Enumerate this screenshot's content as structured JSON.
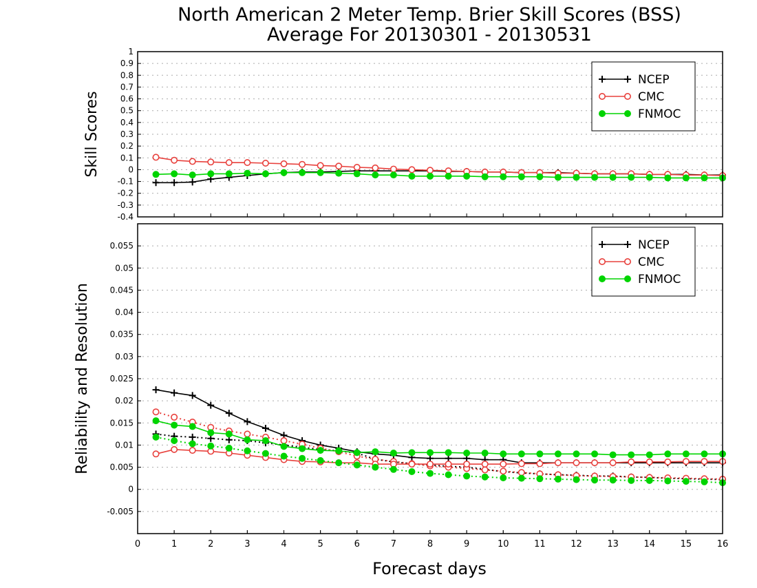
{
  "title_line1": "North American 2 Meter Temp. Brier Skill Scores (BSS)",
  "title_line2": "Average For 20130301 - 20130531",
  "xlabel": "Forecast days",
  "x_ticks": [
    "0",
    "1",
    "2",
    "3",
    "4",
    "5",
    "6",
    "7",
    "8",
    "9",
    "10",
    "11",
    "12",
    "13",
    "14",
    "15",
    "16"
  ],
  "colors": {
    "NCEP": "#000000",
    "CMC": "#e8403c",
    "FNMOC": "#00d400",
    "grid": "#aaaaaa"
  },
  "chart_data": [
    {
      "type": "line",
      "panel": "top",
      "ylabel": "Skill Scores",
      "ylim": [
        -0.4,
        1
      ],
      "y_ticks": [
        "1",
        "0.9",
        "0.8",
        "0.7",
        "0.6",
        "0.5",
        "0.4",
        "0.3",
        "0.2",
        "0.1",
        "0",
        "-0.1",
        "-0.2",
        "-0.3",
        "-0.4"
      ],
      "xlim": [
        0,
        16
      ],
      "grid": true,
      "legend_position": "top-right",
      "legend": [
        {
          "name": "NCEP",
          "marker": "plus"
        },
        {
          "name": "CMC",
          "marker": "open-circle"
        },
        {
          "name": "FNMOC",
          "marker": "filled-circle"
        }
      ],
      "x": [
        0.5,
        1,
        1.5,
        2,
        2.5,
        3,
        3.5,
        4,
        4.5,
        5,
        5.5,
        6,
        6.5,
        7,
        7.5,
        8,
        8.5,
        9,
        9.5,
        10,
        10.5,
        11,
        11.5,
        12,
        12.5,
        13,
        13.5,
        14,
        14.5,
        15,
        15.5,
        16
      ],
      "series": [
        {
          "name": "NCEP",
          "style": "solid",
          "marker": "plus",
          "values": [
            -0.11,
            -0.11,
            -0.105,
            -0.08,
            -0.065,
            -0.05,
            -0.035,
            -0.025,
            -0.02,
            -0.02,
            -0.015,
            -0.01,
            -0.01,
            -0.01,
            -0.01,
            -0.01,
            -0.015,
            -0.015,
            -0.02,
            -0.02,
            -0.025,
            -0.025,
            -0.025,
            -0.03,
            -0.035,
            -0.035,
            -0.035,
            -0.04,
            -0.04,
            -0.04,
            -0.045,
            -0.045
          ]
        },
        {
          "name": "CMC",
          "style": "solid",
          "marker": "open-circle",
          "values": [
            0.105,
            0.08,
            0.07,
            0.065,
            0.06,
            0.06,
            0.055,
            0.05,
            0.045,
            0.035,
            0.03,
            0.02,
            0.015,
            0.005,
            0.0,
            -0.005,
            -0.01,
            -0.015,
            -0.02,
            -0.02,
            -0.025,
            -0.025,
            -0.03,
            -0.03,
            -0.035,
            -0.035,
            -0.035,
            -0.04,
            -0.04,
            -0.045,
            -0.045,
            -0.05
          ]
        },
        {
          "name": "FNMOC",
          "style": "solid",
          "marker": "filled-circle",
          "values": [
            -0.04,
            -0.035,
            -0.045,
            -0.035,
            -0.035,
            -0.03,
            -0.035,
            -0.025,
            -0.025,
            -0.025,
            -0.03,
            -0.035,
            -0.045,
            -0.045,
            -0.055,
            -0.055,
            -0.055,
            -0.055,
            -0.06,
            -0.06,
            -0.06,
            -0.06,
            -0.065,
            -0.065,
            -0.065,
            -0.065,
            -0.065,
            -0.065,
            -0.07,
            -0.07,
            -0.07,
            -0.07
          ]
        }
      ]
    },
    {
      "type": "line",
      "panel": "bottom",
      "ylabel": "Reliability and Resolution",
      "ylim": [
        -0.01,
        0.06
      ],
      "y_ticks": [
        "0.055",
        "0.05",
        "0.045",
        "0.04",
        "0.035",
        "0.03",
        "0.025",
        "0.02",
        "0.015",
        "0.01",
        "0.005",
        "0",
        "-0.005"
      ],
      "xlim": [
        0,
        16
      ],
      "grid": true,
      "legend_position": "top-right",
      "legend": [
        {
          "name": "NCEP",
          "marker": "plus"
        },
        {
          "name": "CMC",
          "marker": "open-circle"
        },
        {
          "name": "FNMOC",
          "marker": "filled-circle"
        }
      ],
      "x": [
        0.5,
        1,
        1.5,
        2,
        2.5,
        3,
        3.5,
        4,
        4.5,
        5,
        5.5,
        6,
        6.5,
        7,
        7.5,
        8,
        8.5,
        9,
        9.5,
        10,
        10.5,
        11,
        11.5,
        12,
        12.5,
        13,
        13.5,
        14,
        14.5,
        15,
        15.5,
        16
      ],
      "series": [
        {
          "name": "NCEP",
          "style": "solid",
          "marker": "plus",
          "values": [
            0.0225,
            0.0218,
            0.0212,
            0.019,
            0.0172,
            0.0153,
            0.0138,
            0.0122,
            0.011,
            0.01,
            0.0093,
            0.0085,
            0.008,
            0.0077,
            0.0072,
            0.007,
            0.007,
            0.007,
            0.0067,
            0.0067,
            0.006,
            0.006,
            0.006,
            0.006,
            0.006,
            0.006,
            0.006,
            0.006,
            0.006,
            0.006,
            0.006,
            0.006
          ]
        },
        {
          "name": "NCEP",
          "style": "dotted",
          "marker": "plus",
          "values": [
            0.0125,
            0.012,
            0.0118,
            0.0115,
            0.0112,
            0.011,
            0.0105,
            0.01,
            0.0095,
            0.009,
            0.0087,
            0.0082,
            0.0068,
            0.0062,
            0.0058,
            0.0055,
            0.0052,
            0.005,
            0.0045,
            0.004,
            0.0037,
            0.0035,
            0.0033,
            0.0032,
            0.003,
            0.003,
            0.0028,
            0.0027,
            0.0025,
            0.0024,
            0.0023,
            0.0022
          ]
        },
        {
          "name": "CMC",
          "style": "dotted",
          "marker": "open-circle",
          "values": [
            0.0175,
            0.0163,
            0.0152,
            0.014,
            0.0132,
            0.0125,
            0.0118,
            0.011,
            0.0102,
            0.0093,
            0.0085,
            0.0075,
            0.0068,
            0.0063,
            0.0058,
            0.0053,
            0.005,
            0.0047,
            0.0044,
            0.0041,
            0.0038,
            0.0035,
            0.0033,
            0.0031,
            0.003,
            0.0029,
            0.0028,
            0.0027,
            0.0026,
            0.0025,
            0.0024,
            0.0023
          ]
        },
        {
          "name": "CMC",
          "style": "solid",
          "marker": "open-circle",
          "values": [
            0.008,
            0.009,
            0.0088,
            0.0086,
            0.0082,
            0.0077,
            0.0072,
            0.0067,
            0.0063,
            0.0062,
            0.006,
            0.006,
            0.0057,
            0.0057,
            0.0057,
            0.0057,
            0.0057,
            0.0057,
            0.0057,
            0.0057,
            0.0058,
            0.0058,
            0.006,
            0.006,
            0.006,
            0.006,
            0.0062,
            0.0062,
            0.0062,
            0.0063,
            0.0063,
            0.0063
          ]
        },
        {
          "name": "FNMOC",
          "style": "solid",
          "marker": "filled-circle",
          "values": [
            0.0155,
            0.0145,
            0.0142,
            0.0128,
            0.0125,
            0.0112,
            0.011,
            0.0097,
            0.0092,
            0.0088,
            0.0087,
            0.0083,
            0.0085,
            0.0082,
            0.0083,
            0.0083,
            0.0083,
            0.0082,
            0.0082,
            0.008,
            0.008,
            0.008,
            0.008,
            0.008,
            0.008,
            0.0078,
            0.0078,
            0.0078,
            0.008,
            0.008,
            0.008,
            0.008
          ]
        },
        {
          "name": "FNMOC",
          "style": "dotted",
          "marker": "filled-circle",
          "values": [
            0.0118,
            0.011,
            0.0103,
            0.0098,
            0.0093,
            0.0087,
            0.0081,
            0.0075,
            0.007,
            0.0065,
            0.006,
            0.0055,
            0.005,
            0.0045,
            0.004,
            0.0036,
            0.0033,
            0.003,
            0.0028,
            0.0026,
            0.0025,
            0.0024,
            0.0023,
            0.0022,
            0.0021,
            0.0021,
            0.002,
            0.002,
            0.0019,
            0.0018,
            0.0017,
            0.0015
          ]
        }
      ]
    }
  ]
}
